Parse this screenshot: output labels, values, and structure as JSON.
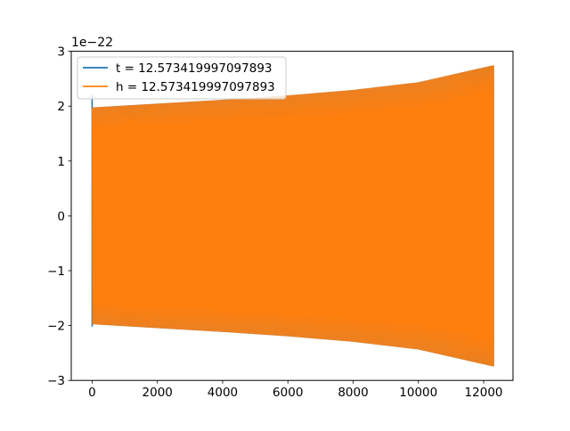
{
  "chart_data": {
    "type": "line",
    "title": "",
    "xlabel": "",
    "ylabel": "",
    "offset_text": "1e−22",
    "xlim": [
      -640,
      12900
    ],
    "ylim": [
      -3,
      3
    ],
    "xticks": [
      0,
      2000,
      4000,
      6000,
      8000,
      10000,
      12000
    ],
    "xtick_labels": [
      "0",
      "2000",
      "4000",
      "6000",
      "8000",
      "10000",
      "12000"
    ],
    "yticks": [
      -3,
      -2,
      -1,
      0,
      1,
      2,
      3
    ],
    "ytick_labels": [
      "−3",
      "−2",
      "−1",
      "0",
      "1",
      "2",
      "3"
    ],
    "grid": false,
    "legend_position": "upper-left",
    "series": [
      {
        "name": "t = 12.573419997097893",
        "color": "#1f77b4",
        "envelope": {
          "x": [
            0,
            2000,
            4000,
            6000,
            8000,
            10000,
            12300
          ],
          "upper": [
            1.97,
            2.04,
            2.11,
            2.19,
            2.29,
            2.43,
            2.74
          ],
          "lower": [
            -1.97,
            -2.04,
            -2.11,
            -2.19,
            -2.29,
            -2.43,
            -2.74
          ]
        },
        "initial_spike": [
          -2.02,
          2.2
        ]
      },
      {
        "name": "h = 12.573419997097893",
        "color": "#ff7f0e",
        "envelope": {
          "x": [
            0,
            2000,
            4000,
            6000,
            8000,
            10000,
            12300
          ],
          "upper": [
            1.97,
            2.04,
            2.11,
            2.19,
            2.29,
            2.43,
            2.74
          ],
          "lower": [
            -1.97,
            -2.04,
            -2.11,
            -2.19,
            -2.29,
            -2.43,
            -2.74
          ]
        }
      }
    ]
  }
}
